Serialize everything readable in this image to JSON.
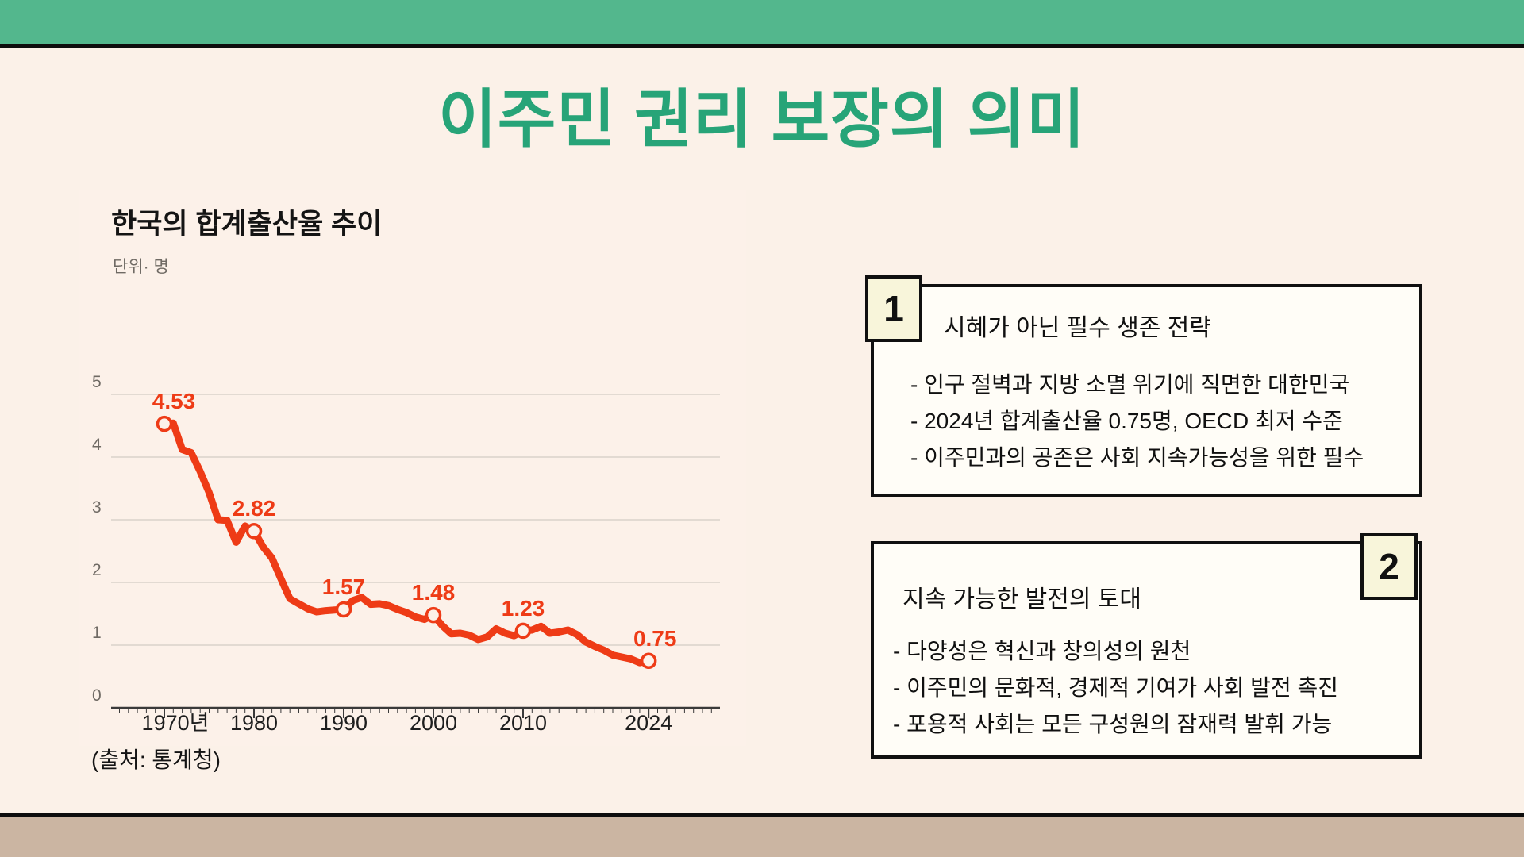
{
  "page": {
    "title": "이주민 권리 보장의 의미"
  },
  "chart_header": {
    "title": "한국의 합계출산율 추이",
    "unit_label": "단위· 명",
    "source": "(출처: 통계청)"
  },
  "chart_data": {
    "type": "line",
    "title": "한국의 합계출산율 추이",
    "unit": "단위· 명",
    "source": "(출처: 통계청)",
    "x": [
      1970,
      1971,
      1972,
      1973,
      1974,
      1975,
      1976,
      1977,
      1978,
      1979,
      1980,
      1981,
      1982,
      1983,
      1984,
      1985,
      1986,
      1987,
      1988,
      1989,
      1990,
      1991,
      1992,
      1993,
      1994,
      1995,
      1996,
      1997,
      1998,
      1999,
      2000,
      2001,
      2002,
      2003,
      2004,
      2005,
      2006,
      2007,
      2008,
      2009,
      2010,
      2011,
      2012,
      2013,
      2014,
      2015,
      2016,
      2017,
      2018,
      2019,
      2020,
      2021,
      2022,
      2023,
      2024
    ],
    "values": [
      4.53,
      4.54,
      4.12,
      4.07,
      3.77,
      3.43,
      3.0,
      2.99,
      2.64,
      2.9,
      2.82,
      2.57,
      2.39,
      2.06,
      1.74,
      1.66,
      1.58,
      1.53,
      1.55,
      1.56,
      1.57,
      1.71,
      1.76,
      1.65,
      1.66,
      1.63,
      1.57,
      1.52,
      1.45,
      1.41,
      1.48,
      1.31,
      1.18,
      1.19,
      1.16,
      1.09,
      1.13,
      1.26,
      1.19,
      1.15,
      1.23,
      1.24,
      1.3,
      1.19,
      1.21,
      1.24,
      1.17,
      1.05,
      0.98,
      0.92,
      0.84,
      0.81,
      0.78,
      0.72,
      0.75
    ],
    "labeled_points": [
      {
        "year": 1970,
        "value": 4.53,
        "label": "4.53"
      },
      {
        "year": 1980,
        "value": 2.82,
        "label": "2.82"
      },
      {
        "year": 1990,
        "value": 1.57,
        "label": "1.57"
      },
      {
        "year": 2000,
        "value": 1.48,
        "label": "1.48"
      },
      {
        "year": 2010,
        "value": 1.23,
        "label": "1.23"
      },
      {
        "year": 2024,
        "value": 0.75,
        "label": "0.75"
      }
    ],
    "yticks": [
      0,
      1,
      2,
      3,
      4,
      5
    ],
    "ylim": [
      0,
      5
    ],
    "xtick_years": [
      1970,
      1980,
      1990,
      2000,
      2010,
      2024
    ],
    "xticks": [
      "1970년",
      "1980",
      "1990",
      "2000",
      "2010",
      "2024"
    ],
    "grid": true,
    "legend": "none",
    "line_color": "#ee3b16",
    "marker_fill": "#fcf1e9",
    "grid_color": "#d9d2ca",
    "axis_color": "#3a3a3a",
    "ytick_color": "#6f6a64",
    "xtick_color": "#1e1e1e"
  },
  "boxes": [
    {
      "badge": "1",
      "title": "시혜가 아닌 필수 생존 전략",
      "bullets": [
        "- 인구 절벽과 지방 소멸 위기에 직면한 대한민국",
        "- 2024년 합계출산율 0.75명, OECD 최저 수준",
        "- 이주민과의 공존은 사회 지속가능성을 위한 필수"
      ]
    },
    {
      "badge": "2",
      "title": "지속 가능한 발전의 토대",
      "bullets": [
        "- 다양성은 혁신과 창의성의 원천",
        "- 이주민의 문화적, 경제적 기여가 사회 발전 촉진",
        "- 포용적 사회는 모든 구성원의 잠재력 발휘 가능"
      ]
    }
  ],
  "colors": {
    "top_bar_green": "#53b78d",
    "title_green": "#27a478",
    "background_cream": "#fbf1e8",
    "chart_line_red": "#ee3b16",
    "box_background": "#fffdf7",
    "badge_background": "#f8f5da",
    "border_black": "#101010",
    "bottom_bar_tan": "#cbb5a2"
  }
}
